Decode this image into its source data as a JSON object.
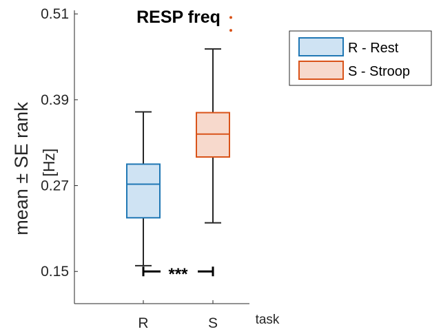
{
  "chart_data": {
    "type": "box",
    "title": "RESP freq",
    "ylabel": "mean ± SE rank",
    "ylabel_unit": "[Hz]",
    "xlabel": "task",
    "categories": [
      "R",
      "S"
    ],
    "yticks": [
      "0.15",
      "0.27",
      "0.39",
      "0.51"
    ],
    "ylim": [
      0.105,
      0.515
    ],
    "series": [
      {
        "name": "R - Rest",
        "category": "R",
        "color": "#1f77b4",
        "fill": "#cfe3f3",
        "whisker_low": 0.158,
        "q1": 0.225,
        "median": 0.272,
        "q3": 0.3,
        "whisker_high": 0.373,
        "outliers": []
      },
      {
        "name": "S - Stroop",
        "category": "S",
        "color": "#d95319",
        "fill": "#f7d9cc",
        "whisker_low": 0.218,
        "q1": 0.31,
        "median": 0.342,
        "q3": 0.372,
        "whisker_high": 0.461,
        "outliers": [
          0.505,
          0.487
        ]
      }
    ],
    "annotations": [
      {
        "text": "***",
        "from": "R",
        "to": "S",
        "y": 0.15
      }
    ],
    "legend": {
      "placement": "outside-top-right"
    },
    "grid": false
  }
}
